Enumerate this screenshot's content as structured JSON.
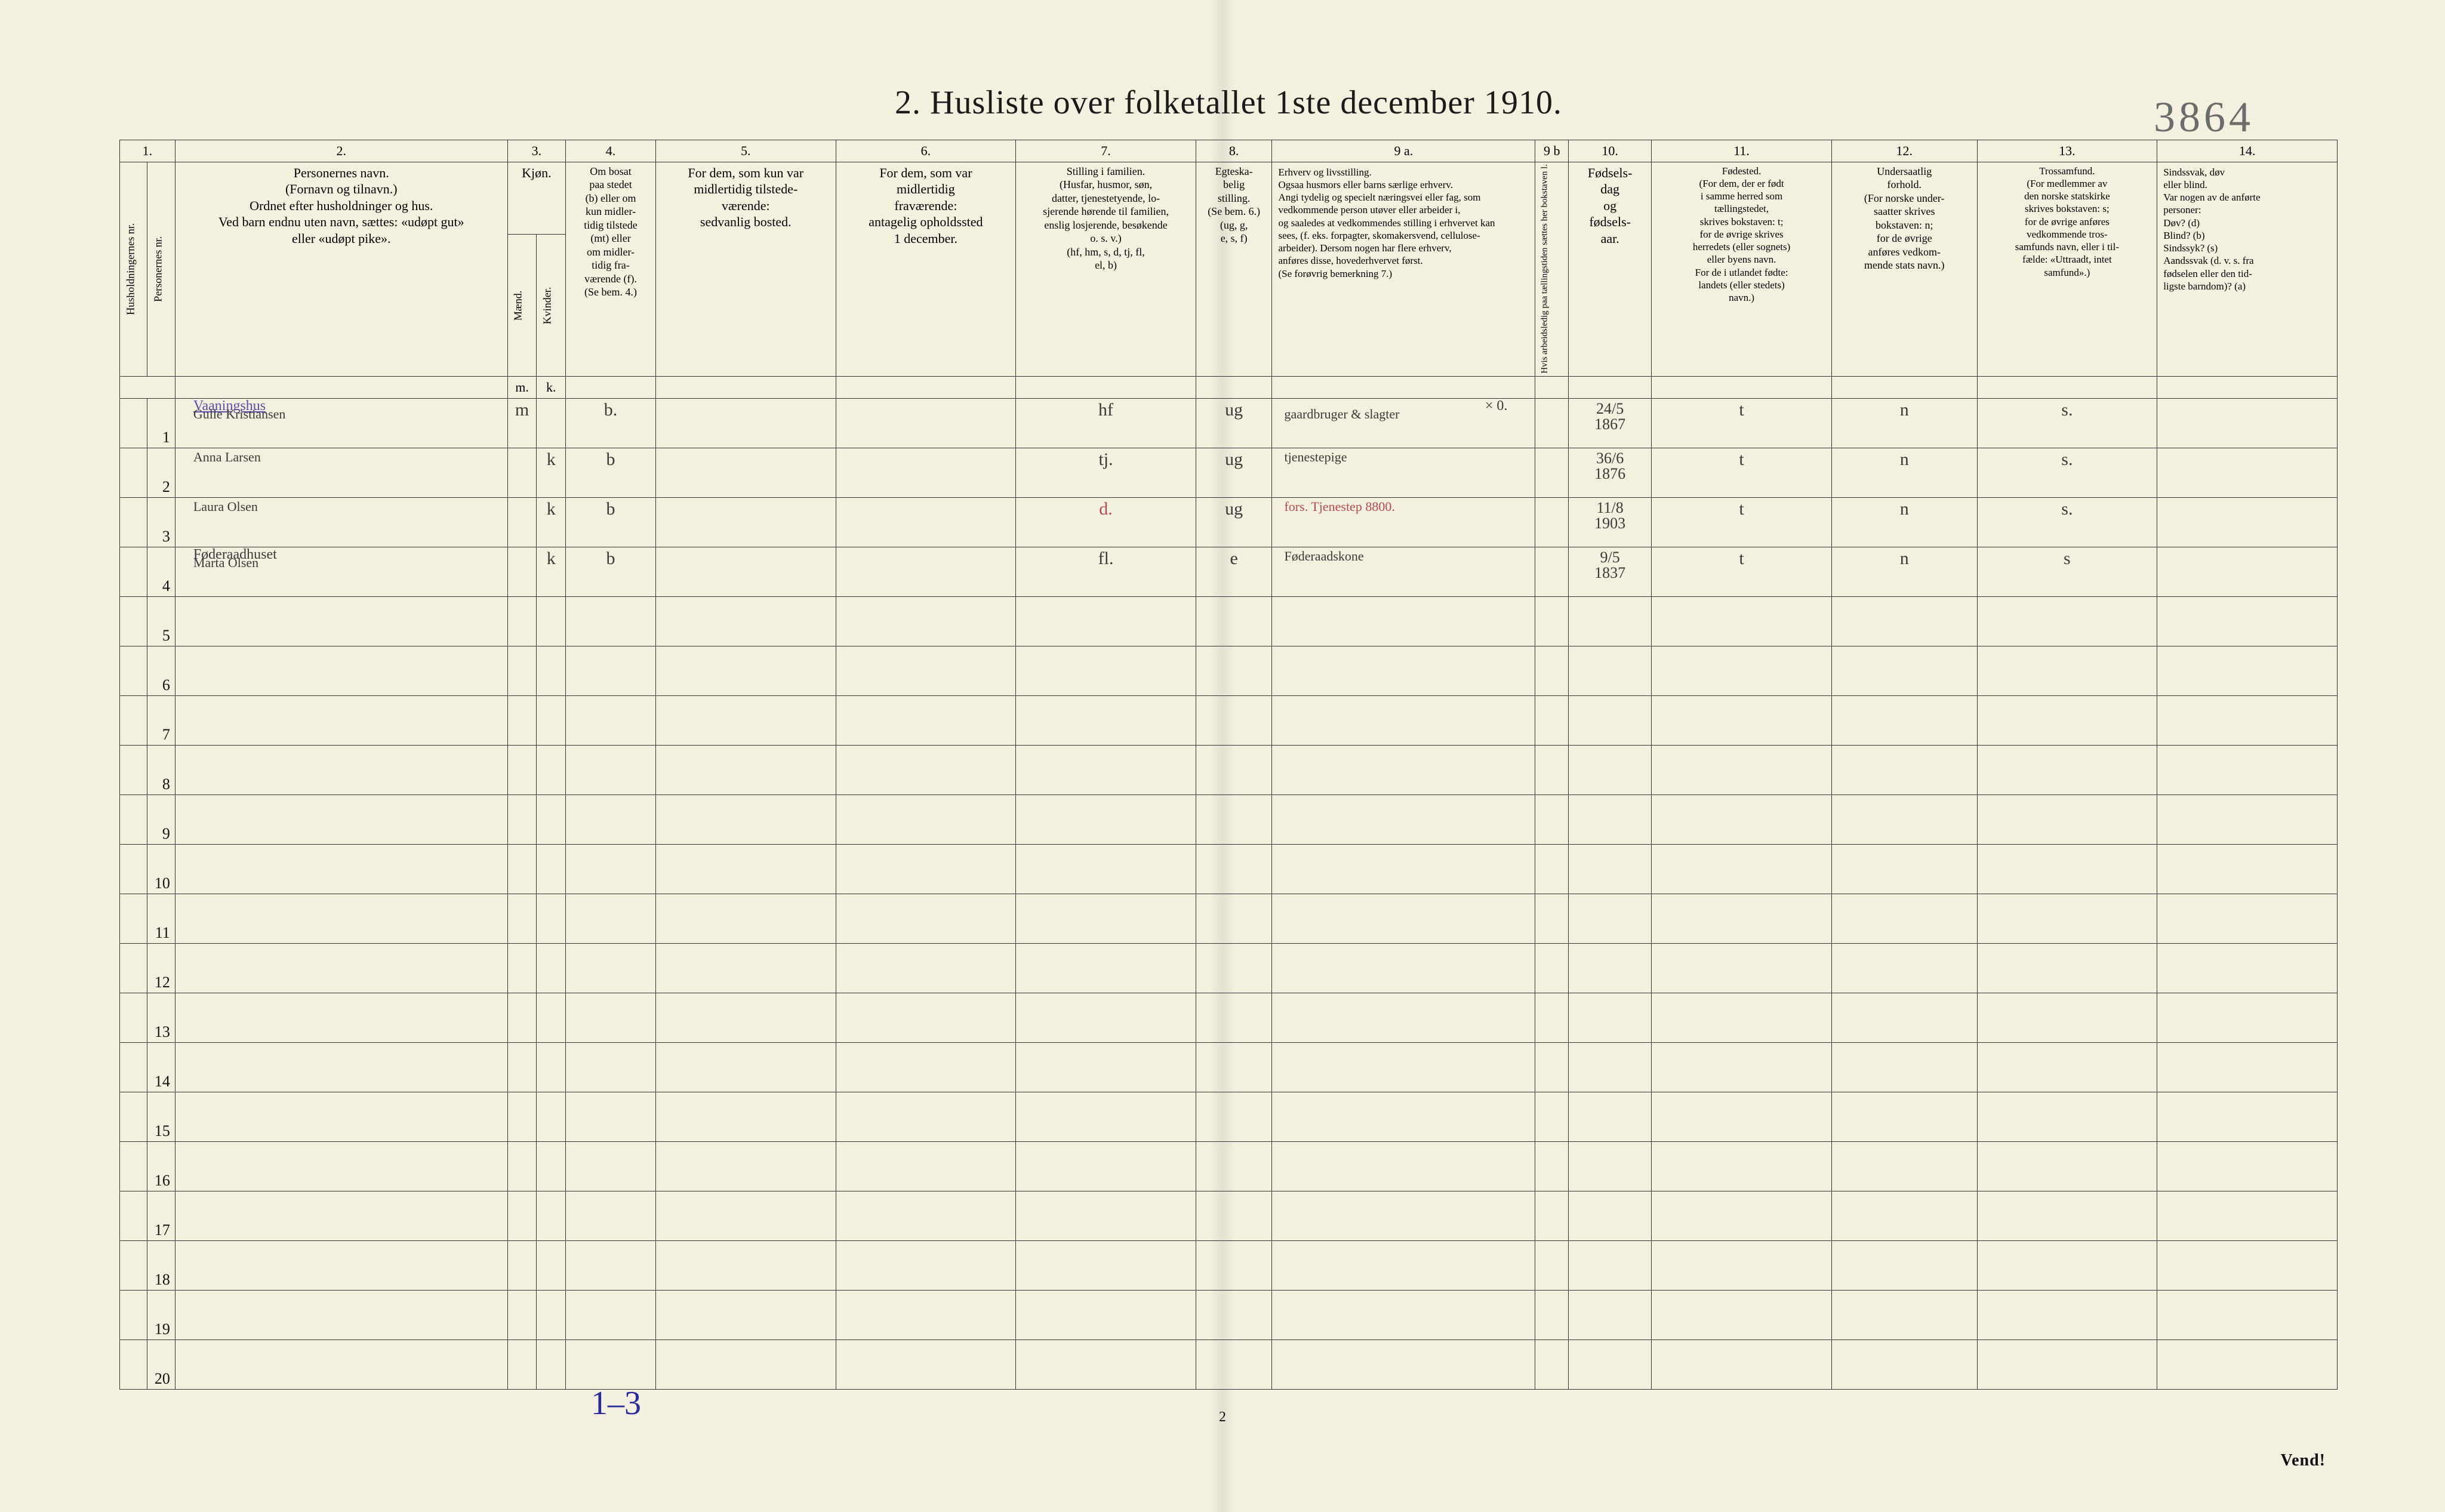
{
  "corner_number": "3864",
  "title": "2.   Husliste over folketallet 1ste december 1910.",
  "footer_page": "2",
  "footer_vend": "Vend!",
  "bottom_blue": "1–3",
  "header": {
    "colnums": [
      "1.",
      "2.",
      "3.",
      "4.",
      "5.",
      "6.",
      "7.",
      "8.",
      "9 a.",
      "9 b",
      "10.",
      "11.",
      "12.",
      "13.",
      "14."
    ],
    "col1a": "Husholdningernes nr.",
    "col1b": "Personernes nr.",
    "col2": "Personernes navn.\n(Fornavn og tilnavn.)\nOrdnet efter husholdninger og hus.\nVed barn endnu uten navn, sættes: «udøpt gut»\neller «udøpt pike».",
    "col3": "Kjøn.",
    "col3a": "Mænd.",
    "col3b": "Kvinder.",
    "col4": "Om bosat\npaa stedet\n(b) eller om\nkun midler-\ntidig tilstede\n(mt) eller\nom midler-\ntidig fra-\nværende (f).\n(Se bem. 4.)",
    "col5": "For dem, som kun var\nmidlertidig tilstede-\nværende:\nsedvanlig bosted.",
    "col6": "For dem, som var\nmidlertidig\nfraværende:\nantagelig opholdssted\n1 december.",
    "col7": "Stilling i familien.\n(Husfar, husmor, søn,\ndatter, tjenestetyende, lo-\nsjerende hørende til familien,\nenslig losjerende, besøkende\no. s. v.)\n(hf, hm, s, d, tj, fl,\nel, b)",
    "col8": "Egteska-\nbelig\nstilling.\n(Se bem. 6.)\n(ug, g,\ne, s, f)",
    "col9a": "Erhverv og livsstilling.\nOgsaa husmors eller barns særlige erhverv.\nAngi tydelig og specielt næringsvei eller fag, som\nvedkommende person utøver eller arbeider i,\nog saaledes at vedkommendes stilling i erhvervet kan\nsees, (f. eks. forpagter, skomakersvend, cellulose-\narbeider). Dersom nogen har flere erhverv,\nanføres disse, hovederhvervet først.\n(Se forøvrig bemerkning 7.)",
    "col9b": "Hvis arbeidsledig\npaa tællingstiden sættes\nher bokstaven l.",
    "col10": "Fødsels-\ndag\nog\nfødsels-\naar.",
    "col11": "Fødested.\n(For dem, der er født\ni samme herred som\ntællingstedet,\nskrives bokstaven: t;\nfor de øvrige skrives\nherredets (eller sognets)\neller byens navn.\nFor de i utlandet fødte:\nlandets (eller stedets)\nnavn.)",
    "col12": "Undersaatlig\nforhold.\n(For norske under-\nsaatter skrives\nbokstaven: n;\nfor de øvrige\nanføres vedkom-\nmende stats navn.)",
    "col13": "Trossamfund.\n(For medlemmer av\nden norske statskirke\nskrives bokstaven: s;\nfor de øvrige anføres\nvedkommende tros-\nsamfunds navn, eller i til-\nfælde: «Uttraadt, intet\nsamfund».)",
    "col14": "Sindssvak, døv\neller blind.\nVar nogen av de anførte\npersoner:\nDøv?        (d)\nBlind?      (b)\nSindssyk?   (s)\nAandssvak (d. v. s. fra\nfødselen eller den tid-\nligste barndom)? (a)",
    "mk": {
      "m": "m.",
      "k": "k."
    }
  },
  "rows": [
    {
      "num": "1",
      "name_sup": "Vaaningshus",
      "name": "Gulle Kristiansen",
      "m": "m",
      "k": "",
      "bosat": "b.",
      "c7": "hf",
      "c8": "ug",
      "c9a_sup": "× 0.",
      "c9a": "gaardbruger & slagter",
      "c10": "24/5\n1867",
      "c11": "t",
      "c12": "n",
      "c13": "s."
    },
    {
      "num": "2",
      "name": "Anna Larsen",
      "m": "",
      "k": "k",
      "bosat": "b",
      "c7": "tj.",
      "c8": "ug",
      "c9a": "tjenestepige",
      "c10": "36/6\n1876",
      "c11": "t",
      "c12": "n",
      "c13": "s."
    },
    {
      "num": "3",
      "name": "Laura Olsen",
      "m": "",
      "k": "k",
      "bosat": "b",
      "c7_red": "d.",
      "c8": "ug",
      "c9a_red": "fors. Tjenestep 8800.",
      "c10": "11/8\n1903",
      "c11": "t",
      "c12": "n",
      "c13": "s."
    },
    {
      "num": "4",
      "name_sup": "Føderaadhuset",
      "name": "Marta Olsen",
      "m": "",
      "k": "k",
      "bosat": "b",
      "c7": "fl.",
      "c8": "e",
      "c9a": "Føderaadskone",
      "c10": "9/5\n1837",
      "c11": "t",
      "c12": "n",
      "c13": "s"
    }
  ],
  "empty_rows": [
    "5",
    "6",
    "7",
    "8",
    "9",
    "10",
    "11",
    "12",
    "13",
    "14",
    "15",
    "16",
    "17",
    "18",
    "19",
    "20"
  ]
}
